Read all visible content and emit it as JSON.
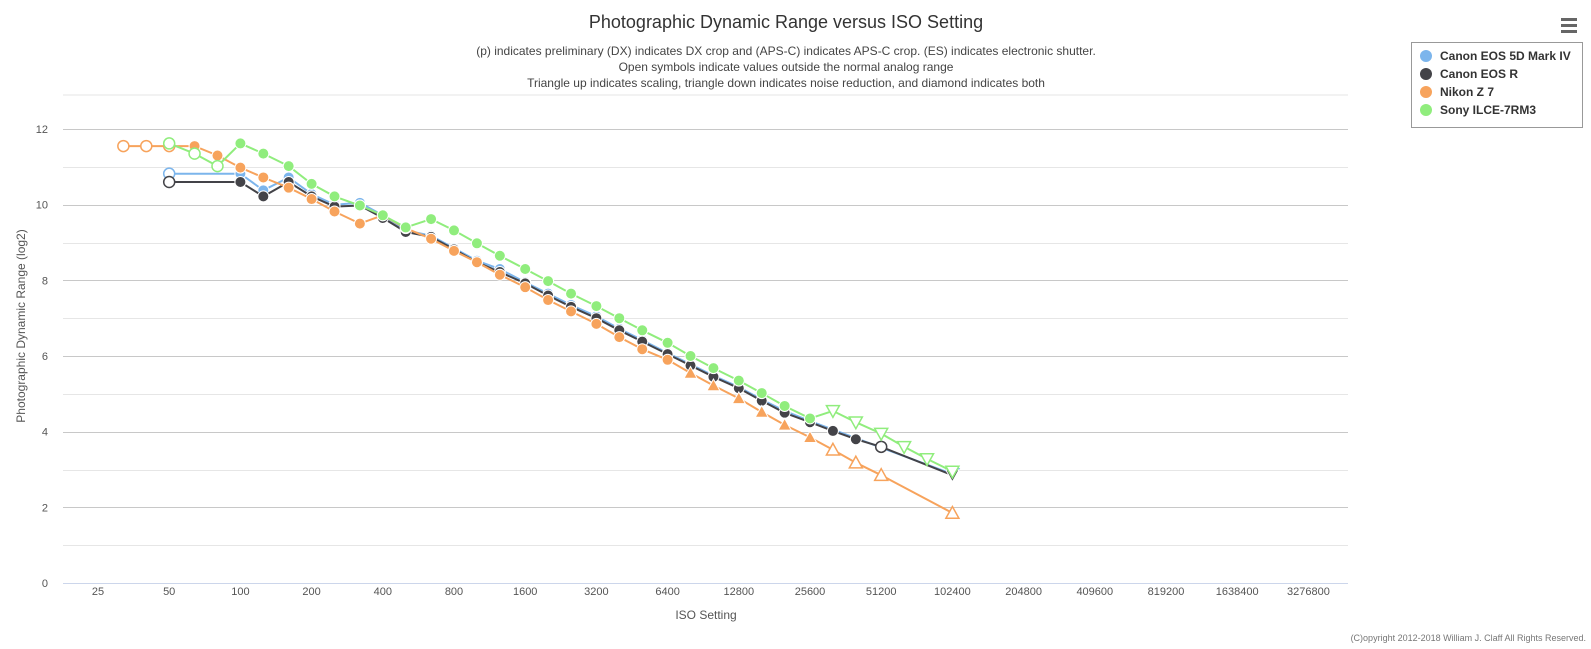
{
  "chart_data": {
    "type": "line",
    "title": "Photographic Dynamic Range versus ISO Setting",
    "subtitle": [
      "(p) indicates preliminary (DX) indicates DX crop and (APS-C) indicates APS-C crop. (ES) indicates electronic shutter.",
      "Open symbols indicate values outside the normal analog range",
      "Triangle up indicates scaling, triangle down indicates noise reduction, and diamond indicates both"
    ],
    "xlabel": "ISO Setting",
    "ylabel": "Photographic Dynamic Range (log2)",
    "x_scale": "log2",
    "x_ticks": [
      "25",
      "50",
      "100",
      "200",
      "400",
      "800",
      "1600",
      "3200",
      "6400",
      "12800",
      "25600",
      "51200",
      "102400",
      "204800",
      "409600",
      "819200",
      "1638400",
      "3276800"
    ],
    "y_ticks": [
      0,
      2,
      4,
      6,
      8,
      10,
      12
    ],
    "ylim": [
      0,
      12.9
    ],
    "grid": true,
    "legend_position": "top-right",
    "credits": "(C)opyright 2012-2018 William J. Claff All Rights Reserved.",
    "series": [
      {
        "name": "Canon EOS 5D Mark IV",
        "color": "#7cb5ec",
        "points": [
          {
            "x": 50,
            "y": 10.82,
            "m": "open"
          },
          {
            "x": 100,
            "y": 10.82,
            "m": "filled"
          },
          {
            "x": 125,
            "y": 10.38,
            "m": "filled"
          },
          {
            "x": 160,
            "y": 10.72,
            "m": "filled"
          },
          {
            "x": 200,
            "y": 10.28,
            "m": "filled"
          },
          {
            "x": 250,
            "y": 10.0,
            "m": "filled"
          },
          {
            "x": 320,
            "y": 10.05,
            "m": "filled"
          },
          {
            "x": 400,
            "y": 9.72,
            "m": "filled"
          },
          {
            "x": 500,
            "y": 9.32,
            "m": "filled"
          },
          {
            "x": 640,
            "y": 9.18,
            "m": "filled"
          },
          {
            "x": 800,
            "y": 8.85,
            "m": "filled"
          },
          {
            "x": 1000,
            "y": 8.52,
            "m": "filled"
          },
          {
            "x": 1250,
            "y": 8.3,
            "m": "filled"
          },
          {
            "x": 1600,
            "y": 7.95,
            "m": "filled"
          },
          {
            "x": 2000,
            "y": 7.65,
            "m": "filled"
          },
          {
            "x": 2500,
            "y": 7.35,
            "m": "filled"
          },
          {
            "x": 3200,
            "y": 7.05,
            "m": "filled"
          },
          {
            "x": 4000,
            "y": 6.72,
            "m": "filled"
          },
          {
            "x": 5000,
            "y": 6.42,
            "m": "filled"
          },
          {
            "x": 6400,
            "y": 6.08,
            "m": "filled"
          },
          {
            "x": 8000,
            "y": 5.78,
            "m": "filled"
          },
          {
            "x": 10000,
            "y": 5.48,
            "m": "filled"
          },
          {
            "x": 12800,
            "y": 5.18,
            "m": "filled"
          },
          {
            "x": 16000,
            "y": 4.85,
            "m": "filled"
          },
          {
            "x": 20000,
            "y": 4.55,
            "m": "filled"
          },
          {
            "x": 25600,
            "y": 4.28,
            "m": "filled"
          },
          {
            "x": 102400,
            "y": 2.88,
            "m": "tri-down-open"
          }
        ]
      },
      {
        "name": "Canon EOS R",
        "color": "#434348",
        "points": [
          {
            "x": 50,
            "y": 10.6,
            "m": "open"
          },
          {
            "x": 100,
            "y": 10.6,
            "m": "filled"
          },
          {
            "x": 125,
            "y": 10.22,
            "m": "filled"
          },
          {
            "x": 160,
            "y": 10.6,
            "m": "filled"
          },
          {
            "x": 200,
            "y": 10.22,
            "m": "filled"
          },
          {
            "x": 250,
            "y": 9.95,
            "m": "filled"
          },
          {
            "x": 320,
            "y": 9.98,
            "m": "filled"
          },
          {
            "x": 400,
            "y": 9.65,
            "m": "filled"
          },
          {
            "x": 500,
            "y": 9.28,
            "m": "filled"
          },
          {
            "x": 640,
            "y": 9.15,
            "m": "filled"
          },
          {
            "x": 800,
            "y": 8.82,
            "m": "filled"
          },
          {
            "x": 1000,
            "y": 8.48,
            "m": "filled"
          },
          {
            "x": 1250,
            "y": 8.22,
            "m": "filled"
          },
          {
            "x": 1600,
            "y": 7.92,
            "m": "filled"
          },
          {
            "x": 2000,
            "y": 7.6,
            "m": "filled"
          },
          {
            "x": 2500,
            "y": 7.3,
            "m": "filled"
          },
          {
            "x": 3200,
            "y": 7.0,
            "m": "filled"
          },
          {
            "x": 4000,
            "y": 6.68,
            "m": "filled"
          },
          {
            "x": 5000,
            "y": 6.38,
            "m": "filled"
          },
          {
            "x": 6400,
            "y": 6.05,
            "m": "filled"
          },
          {
            "x": 8000,
            "y": 5.75,
            "m": "filled"
          },
          {
            "x": 10000,
            "y": 5.45,
            "m": "filled"
          },
          {
            "x": 12800,
            "y": 5.15,
            "m": "filled"
          },
          {
            "x": 16000,
            "y": 4.82,
            "m": "filled"
          },
          {
            "x": 20000,
            "y": 4.5,
            "m": "filled"
          },
          {
            "x": 25600,
            "y": 4.25,
            "m": "filled"
          },
          {
            "x": 32000,
            "y": 4.02,
            "m": "filled"
          },
          {
            "x": 40000,
            "y": 3.8,
            "m": "filled"
          },
          {
            "x": 51200,
            "y": 3.6,
            "m": "open"
          },
          {
            "x": 102400,
            "y": 2.85,
            "m": "tri-down-filled"
          }
        ]
      },
      {
        "name": "Nikon Z 7",
        "color": "#f7a35c",
        "points": [
          {
            "x": 32,
            "y": 11.55,
            "m": "open"
          },
          {
            "x": 40,
            "y": 11.55,
            "m": "open"
          },
          {
            "x": 50,
            "y": 11.55,
            "m": "open"
          },
          {
            "x": 64,
            "y": 11.55,
            "m": "filled"
          },
          {
            "x": 80,
            "y": 11.3,
            "m": "filled"
          },
          {
            "x": 100,
            "y": 10.98,
            "m": "filled"
          },
          {
            "x": 125,
            "y": 10.72,
            "m": "filled"
          },
          {
            "x": 160,
            "y": 10.45,
            "m": "filled"
          },
          {
            "x": 200,
            "y": 10.15,
            "m": "filled"
          },
          {
            "x": 250,
            "y": 9.82,
            "m": "filled"
          },
          {
            "x": 320,
            "y": 9.5,
            "m": "filled"
          },
          {
            "x": 400,
            "y": 9.72,
            "m": "filled"
          },
          {
            "x": 500,
            "y": 9.38,
            "m": "filled"
          },
          {
            "x": 640,
            "y": 9.1,
            "m": "filled"
          },
          {
            "x": 800,
            "y": 8.78,
            "m": "filled"
          },
          {
            "x": 1000,
            "y": 8.48,
            "m": "filled"
          },
          {
            "x": 1250,
            "y": 8.15,
            "m": "filled"
          },
          {
            "x": 1600,
            "y": 7.82,
            "m": "filled"
          },
          {
            "x": 2000,
            "y": 7.48,
            "m": "filled"
          },
          {
            "x": 2500,
            "y": 7.18,
            "m": "filled"
          },
          {
            "x": 3200,
            "y": 6.85,
            "m": "filled"
          },
          {
            "x": 4000,
            "y": 6.5,
            "m": "filled"
          },
          {
            "x": 5000,
            "y": 6.18,
            "m": "filled"
          },
          {
            "x": 6400,
            "y": 5.9,
            "m": "filled"
          },
          {
            "x": 8000,
            "y": 5.55,
            "m": "tri-up-filled"
          },
          {
            "x": 10000,
            "y": 5.22,
            "m": "tri-up-filled"
          },
          {
            "x": 12800,
            "y": 4.88,
            "m": "tri-up-filled"
          },
          {
            "x": 16000,
            "y": 4.52,
            "m": "tri-up-filled"
          },
          {
            "x": 20000,
            "y": 4.18,
            "m": "tri-up-filled"
          },
          {
            "x": 25600,
            "y": 3.85,
            "m": "tri-up-filled"
          },
          {
            "x": 32000,
            "y": 3.52,
            "m": "tri-up-open"
          },
          {
            "x": 40000,
            "y": 3.18,
            "m": "tri-up-open"
          },
          {
            "x": 51200,
            "y": 2.85,
            "m": "tri-up-open"
          },
          {
            "x": 102400,
            "y": 1.85,
            "m": "tri-up-open"
          }
        ]
      },
      {
        "name": "Sony ILCE-7RM3",
        "color": "#90ed7d",
        "points": [
          {
            "x": 50,
            "y": 11.62,
            "m": "open"
          },
          {
            "x": 64,
            "y": 11.35,
            "m": "open"
          },
          {
            "x": 80,
            "y": 11.02,
            "m": "open"
          },
          {
            "x": 100,
            "y": 11.62,
            "m": "filled"
          },
          {
            "x": 125,
            "y": 11.35,
            "m": "filled"
          },
          {
            "x": 160,
            "y": 11.02,
            "m": "filled"
          },
          {
            "x": 200,
            "y": 10.55,
            "m": "filled"
          },
          {
            "x": 250,
            "y": 10.22,
            "m": "filled"
          },
          {
            "x": 320,
            "y": 9.98,
            "m": "filled"
          },
          {
            "x": 400,
            "y": 9.72,
            "m": "filled"
          },
          {
            "x": 500,
            "y": 9.4,
            "m": "filled"
          },
          {
            "x": 640,
            "y": 9.62,
            "m": "filled"
          },
          {
            "x": 800,
            "y": 9.32,
            "m": "filled"
          },
          {
            "x": 1000,
            "y": 8.98,
            "m": "filled"
          },
          {
            "x": 1250,
            "y": 8.65,
            "m": "filled"
          },
          {
            "x": 1600,
            "y": 8.3,
            "m": "filled"
          },
          {
            "x": 2000,
            "y": 7.98,
            "m": "filled"
          },
          {
            "x": 2500,
            "y": 7.65,
            "m": "filled"
          },
          {
            "x": 3200,
            "y": 7.32,
            "m": "filled"
          },
          {
            "x": 4000,
            "y": 7.0,
            "m": "filled"
          },
          {
            "x": 5000,
            "y": 6.68,
            "m": "filled"
          },
          {
            "x": 6400,
            "y": 6.35,
            "m": "filled"
          },
          {
            "x": 8000,
            "y": 6.0,
            "m": "filled"
          },
          {
            "x": 10000,
            "y": 5.68,
            "m": "filled"
          },
          {
            "x": 12800,
            "y": 5.35,
            "m": "filled"
          },
          {
            "x": 16000,
            "y": 5.02,
            "m": "filled"
          },
          {
            "x": 20000,
            "y": 4.68,
            "m": "filled"
          },
          {
            "x": 25600,
            "y": 4.35,
            "m": "filled"
          },
          {
            "x": 32000,
            "y": 4.55,
            "m": "tri-down-open"
          },
          {
            "x": 40000,
            "y": 4.25,
            "m": "tri-down-open"
          },
          {
            "x": 51200,
            "y": 3.95,
            "m": "tri-down-open"
          },
          {
            "x": 64000,
            "y": 3.6,
            "m": "tri-down-open"
          },
          {
            "x": 80000,
            "y": 3.28,
            "m": "tri-down-open"
          },
          {
            "x": 102400,
            "y": 2.95,
            "m": "tri-down-open"
          }
        ]
      }
    ]
  },
  "menu": {
    "icon": "hamburger-menu-icon"
  }
}
